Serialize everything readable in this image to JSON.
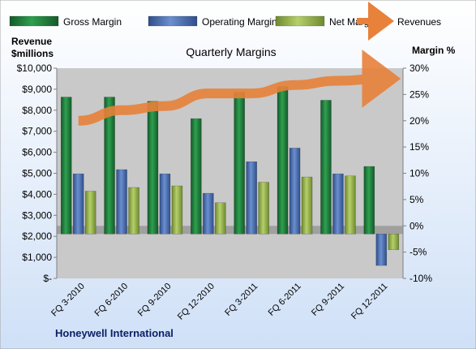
{
  "chart_data": {
    "type": "bar",
    "title": "Quarterly Margins",
    "categories": [
      "FQ 3-2010",
      "FQ 6-2010",
      "FQ 9-2010",
      "FQ 12-2010",
      "FQ 3-2011",
      "FQ 6-2011",
      "FQ 9-2011",
      "FQ 12-2011"
    ],
    "series": [
      {
        "name": "Gross Margin",
        "axis": "right",
        "color": "#1e7a3c",
        "values": [
          24.5,
          24.5,
          23.7,
          20.4,
          25.4,
          26.5,
          23.9,
          11.3
        ]
      },
      {
        "name": "Operating Margin",
        "axis": "right",
        "color": "#4a6fb0",
        "values": [
          9.9,
          10.7,
          9.9,
          6.2,
          12.2,
          14.8,
          9.9,
          -6.0
        ]
      },
      {
        "name": "Net Margin",
        "axis": "right",
        "color": "#93b34a",
        "values": [
          6.6,
          7.3,
          7.6,
          4.4,
          8.3,
          9.3,
          9.5,
          -3.0
        ]
      }
    ],
    "line_series": {
      "name": "Revenues",
      "axis": "left",
      "color": "#e8813a",
      "values": [
        7500,
        8000,
        8200,
        8800,
        8800,
        9200,
        9400,
        9500
      ]
    },
    "y_left": {
      "label_lines": [
        "Revenue",
        "$millions"
      ],
      "min": 0,
      "max": 10000,
      "step": 1000,
      "tick_labels": [
        "$-",
        "$1,000",
        "$2,000",
        "$3,000",
        "$4,000",
        "$5,000",
        "$6,000",
        "$7,000",
        "$8,000",
        "$9,000",
        "$10,000"
      ]
    },
    "y_right": {
      "label": "Margin %",
      "min": -10,
      "max": 30,
      "step": 5,
      "tick_labels": [
        "-10%",
        "-5%",
        "0%",
        "5%",
        "10%",
        "15%",
        "20%",
        "25%",
        "30%"
      ]
    },
    "grid": false,
    "legend_position": "top",
    "footer": "Honeywell International",
    "colors": {
      "plot_bg": "#c9c9c9",
      "page_bg_top": "#ffffff",
      "page_bg_bottom": "#cfe0f7",
      "zero_band": "#a0a0a0"
    }
  }
}
